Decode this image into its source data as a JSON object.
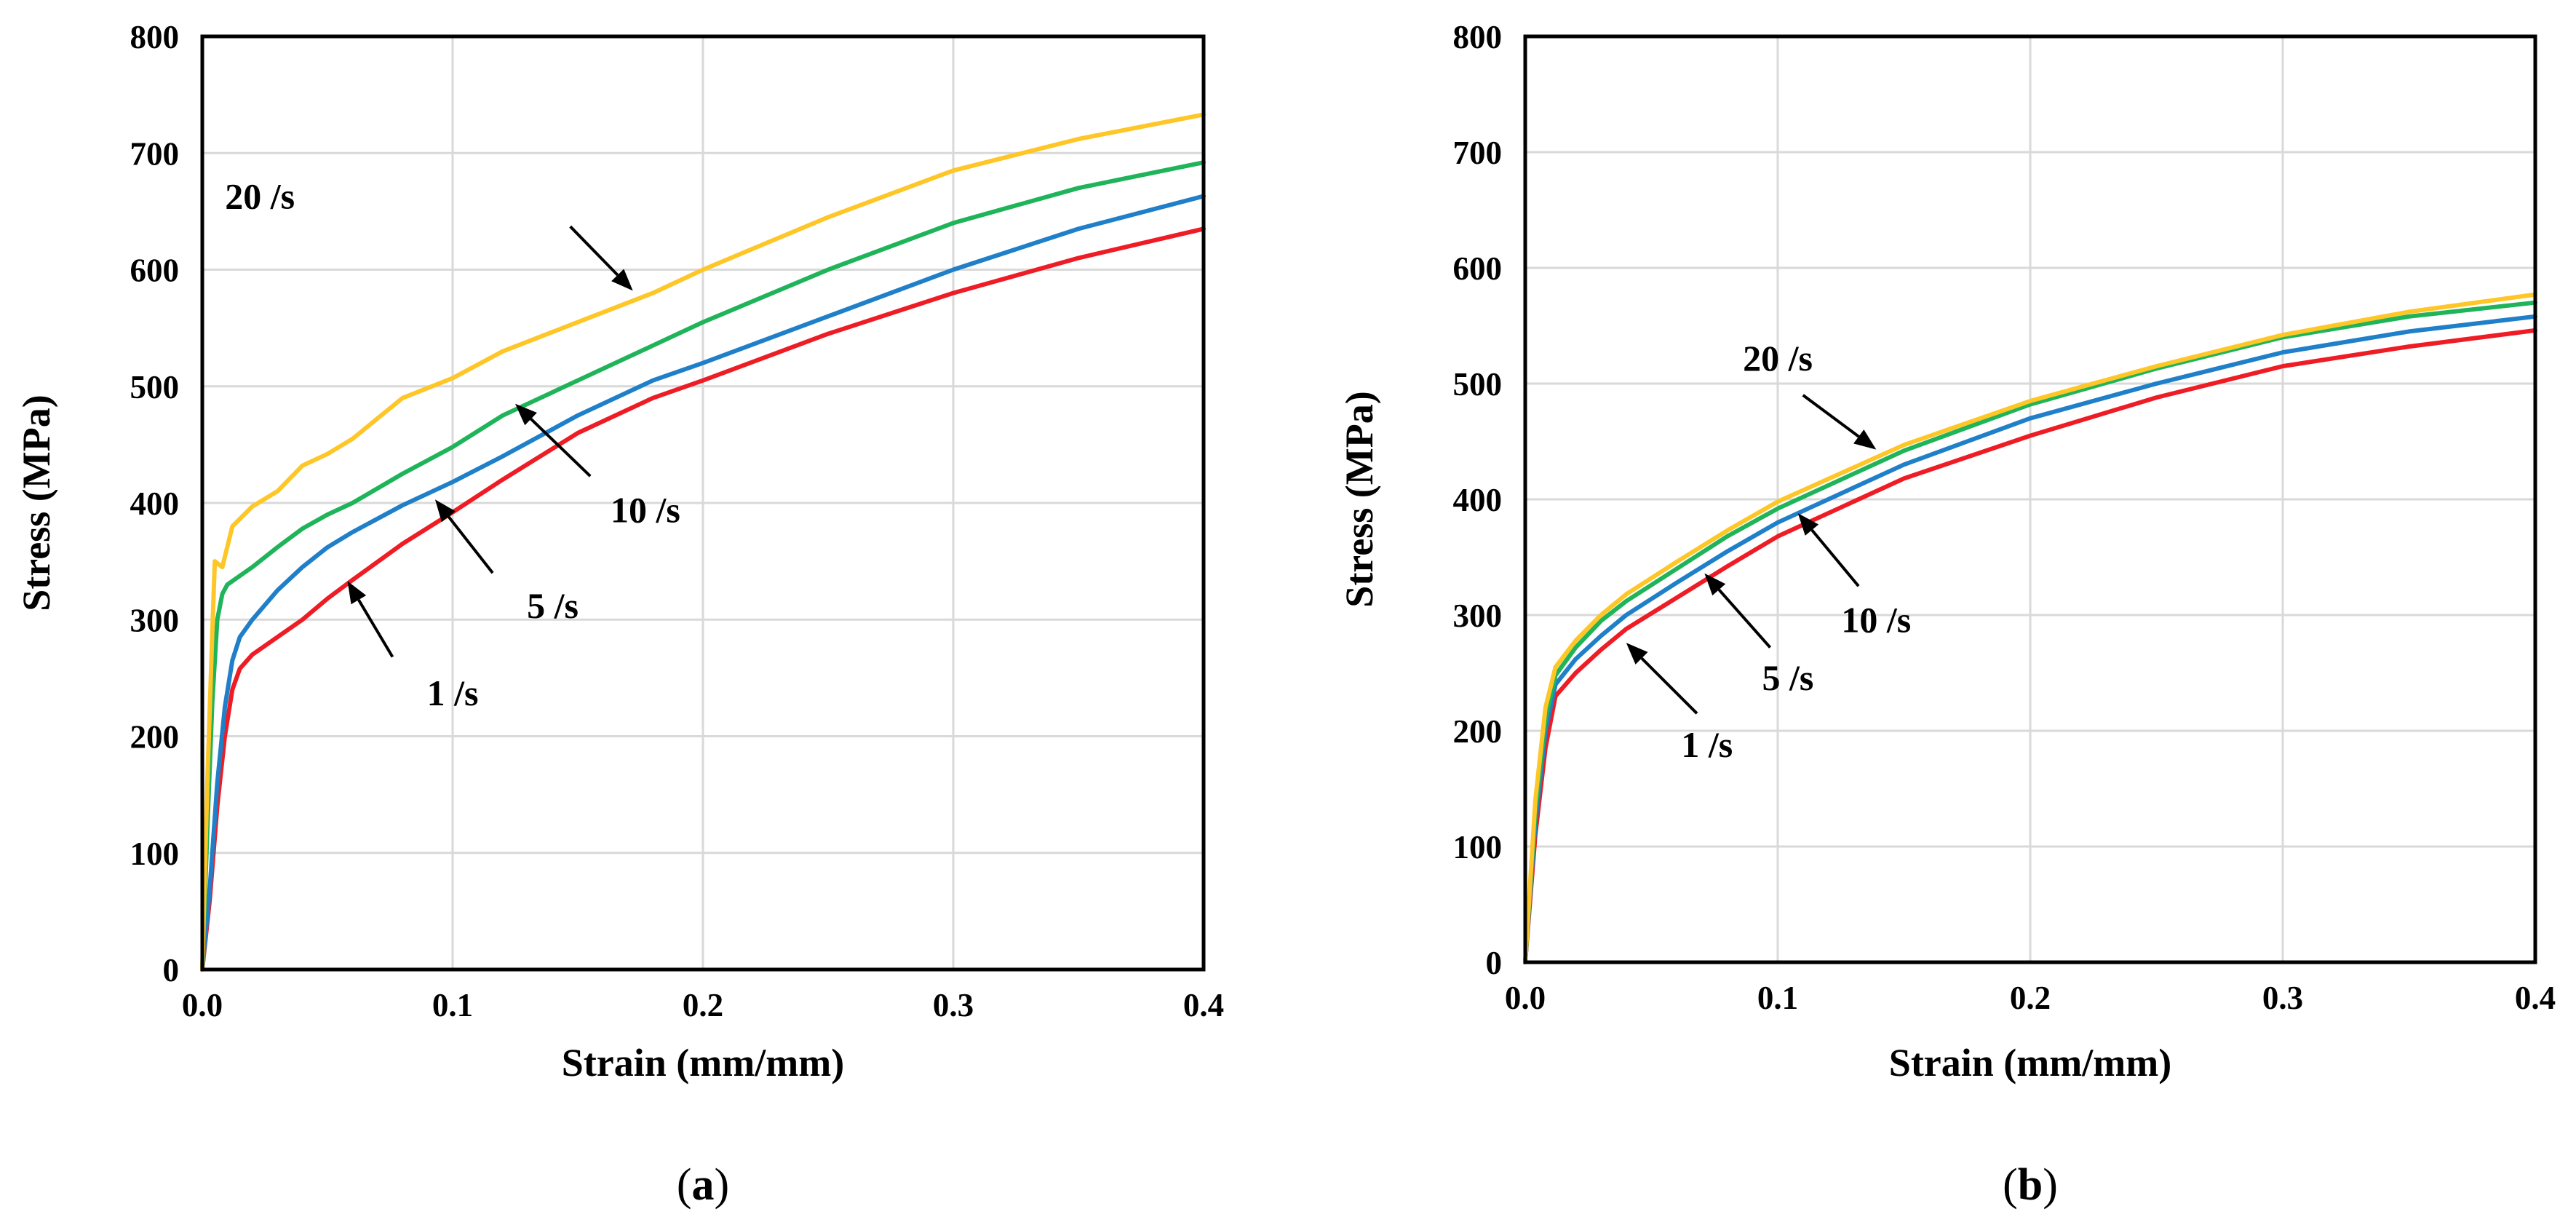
{
  "chart_data": [
    {
      "panel": "a",
      "type": "line",
      "panel_label": "(a)",
      "panel_label_prefix": "(",
      "panel_label_letter": "a",
      "panel_label_suffix": ")",
      "xlabel": "Strain (mm/mm)",
      "ylabel": "Stress (MPa)",
      "xlim": [
        0,
        0.4
      ],
      "ylim": [
        0,
        800
      ],
      "xticks": [
        0,
        0.1,
        0.2,
        0.3,
        0.4
      ],
      "xtick_labels": [
        "0.0",
        "0.1",
        "0.2",
        "0.3",
        "0.4"
      ],
      "yticks": [
        0,
        100,
        200,
        300,
        400,
        500,
        600,
        700,
        800
      ],
      "ytick_labels": [
        "0",
        "100",
        "200",
        "300",
        "400",
        "500",
        "600",
        "700",
        "800"
      ],
      "grid": true,
      "series": [
        {
          "name": "1 /s",
          "color": "#ee1c24",
          "points": [
            [
              0,
              0
            ],
            [
              0.003,
              60
            ],
            [
              0.006,
              140
            ],
            [
              0.009,
              200
            ],
            [
              0.012,
              240
            ],
            [
              0.015,
              258
            ],
            [
              0.02,
              270
            ],
            [
              0.03,
              285
            ],
            [
              0.04,
              300
            ],
            [
              0.05,
              318
            ],
            [
              0.06,
              334
            ],
            [
              0.08,
              365
            ],
            [
              0.1,
              392
            ],
            [
              0.12,
              420
            ],
            [
              0.15,
              460
            ],
            [
              0.18,
              490
            ],
            [
              0.2,
              505
            ],
            [
              0.25,
              545
            ],
            [
              0.3,
              580
            ],
            [
              0.35,
              610
            ],
            [
              0.4,
              635
            ]
          ],
          "label": {
            "text": "1 /s",
            "text_pos": [
              0.1,
              237
            ],
            "arrow_from": [
              0.076,
              268
            ],
            "arrow_to": [
              0.058,
              333
            ]
          }
        },
        {
          "name": "5 /s",
          "color": "#1f7fc8",
          "points": [
            [
              0,
              0
            ],
            [
              0.003,
              70
            ],
            [
              0.006,
              160
            ],
            [
              0.009,
              225
            ],
            [
              0.012,
              265
            ],
            [
              0.015,
              285
            ],
            [
              0.02,
              300
            ],
            [
              0.03,
              325
            ],
            [
              0.04,
              345
            ],
            [
              0.05,
              362
            ],
            [
              0.06,
              375
            ],
            [
              0.08,
              398
            ],
            [
              0.1,
              418
            ],
            [
              0.12,
              440
            ],
            [
              0.15,
              475
            ],
            [
              0.18,
              505
            ],
            [
              0.2,
              520
            ],
            [
              0.25,
              560
            ],
            [
              0.3,
              600
            ],
            [
              0.35,
              635
            ],
            [
              0.4,
              663
            ]
          ],
          "label": {
            "text": "5 /s",
            "text_pos": [
              0.14,
              312
            ],
            "arrow_from": [
              0.116,
              340
            ],
            "arrow_to": [
              0.093,
              403
            ]
          }
        },
        {
          "name": "10 /s",
          "color": "#1fb45a",
          "points": [
            [
              0,
              0
            ],
            [
              0.002,
              120
            ],
            [
              0.004,
              230
            ],
            [
              0.006,
              300
            ],
            [
              0.008,
              322
            ],
            [
              0.01,
              330
            ],
            [
              0.02,
              345
            ],
            [
              0.03,
              362
            ],
            [
              0.04,
              378
            ],
            [
              0.05,
              390
            ],
            [
              0.06,
              400
            ],
            [
              0.08,
              425
            ],
            [
              0.1,
              448
            ],
            [
              0.12,
              475
            ],
            [
              0.15,
              505
            ],
            [
              0.18,
              535
            ],
            [
              0.2,
              555
            ],
            [
              0.25,
              600
            ],
            [
              0.3,
              640
            ],
            [
              0.35,
              670
            ],
            [
              0.4,
              692
            ]
          ],
          "label": {
            "text": "10 /s",
            "text_pos": [
              0.177,
              394
            ],
            "arrow_from": [
              0.155,
              423
            ],
            "arrow_to": [
              0.125,
              485
            ]
          }
        },
        {
          "name": "20 /s",
          "color": "#fec627",
          "points": [
            [
              0,
              0
            ],
            [
              0.002,
              160
            ],
            [
              0.004,
              290
            ],
            [
              0.005,
              350
            ],
            [
              0.008,
              345
            ],
            [
              0.012,
              380
            ],
            [
              0.02,
              397
            ],
            [
              0.03,
              410
            ],
            [
              0.04,
              432
            ],
            [
              0.05,
              442
            ],
            [
              0.06,
              455
            ],
            [
              0.08,
              490
            ],
            [
              0.1,
              507
            ],
            [
              0.12,
              530
            ],
            [
              0.15,
              555
            ],
            [
              0.18,
              580
            ],
            [
              0.2,
              600
            ],
            [
              0.25,
              645
            ],
            [
              0.3,
              685
            ],
            [
              0.35,
              712
            ],
            [
              0.4,
              733
            ]
          ],
          "label": {
            "text": "20 /s",
            "text_pos": [
              0.023,
              663
            ],
            "arrow_from": [
              0.147,
              637
            ],
            "arrow_to": [
              0.172,
              582
            ]
          }
        }
      ]
    },
    {
      "panel": "b",
      "type": "line",
      "panel_label": "(b)",
      "panel_label_prefix": "(",
      "panel_label_letter": "b",
      "panel_label_suffix": ")",
      "xlabel": "Strain (mm/mm)",
      "ylabel": "Stress (MPa)",
      "xlim": [
        0,
        0.4
      ],
      "ylim": [
        0,
        800
      ],
      "xticks": [
        0,
        0.1,
        0.2,
        0.3,
        0.4
      ],
      "xtick_labels": [
        "0.0",
        "0.1",
        "0.2",
        "0.3",
        "0.4"
      ],
      "yticks": [
        0,
        100,
        200,
        300,
        400,
        500,
        600,
        700,
        800
      ],
      "ytick_labels": [
        "0",
        "100",
        "200",
        "300",
        "400",
        "500",
        "600",
        "700",
        "800"
      ],
      "grid": true,
      "series": [
        {
          "name": "1 /s",
          "color": "#ee1c24",
          "points": [
            [
              0,
              0
            ],
            [
              0.004,
              110
            ],
            [
              0.008,
              185
            ],
            [
              0.012,
              230
            ],
            [
              0.02,
              250
            ],
            [
              0.03,
              270
            ],
            [
              0.04,
              288
            ],
            [
              0.06,
              315
            ],
            [
              0.08,
              342
            ],
            [
              0.1,
              368
            ],
            [
              0.15,
              418
            ],
            [
              0.2,
              455
            ],
            [
              0.25,
              488
            ],
            [
              0.3,
              515
            ],
            [
              0.35,
              532
            ],
            [
              0.4,
              546
            ]
          ],
          "label": {
            "text": "1 /s",
            "text_pos": [
              0.072,
              188
            ],
            "arrow_from": [
              0.068,
              215
            ],
            "arrow_to": [
              0.04,
              276
            ]
          }
        },
        {
          "name": "5 /s",
          "color": "#1f7fc8",
          "points": [
            [
              0,
              0
            ],
            [
              0.004,
              120
            ],
            [
              0.008,
              200
            ],
            [
              0.012,
              240
            ],
            [
              0.02,
              262
            ],
            [
              0.03,
              282
            ],
            [
              0.04,
              300
            ],
            [
              0.06,
              328
            ],
            [
              0.08,
              355
            ],
            [
              0.1,
              380
            ],
            [
              0.15,
              430
            ],
            [
              0.2,
              470
            ],
            [
              0.25,
              500
            ],
            [
              0.3,
              527
            ],
            [
              0.35,
              545
            ],
            [
              0.4,
              558
            ]
          ],
          "label": {
            "text": "5 /s",
            "text_pos": [
              0.104,
              246
            ],
            "arrow_from": [
              0.097,
              272
            ],
            "arrow_to": [
              0.071,
              336
            ]
          }
        },
        {
          "name": "10 /s",
          "color": "#1fb45a",
          "points": [
            [
              0,
              0
            ],
            [
              0.004,
              130
            ],
            [
              0.008,
              210
            ],
            [
              0.012,
              248
            ],
            [
              0.02,
              272
            ],
            [
              0.03,
              295
            ],
            [
              0.04,
              312
            ],
            [
              0.06,
              340
            ],
            [
              0.08,
              368
            ],
            [
              0.1,
              392
            ],
            [
              0.15,
              442
            ],
            [
              0.2,
              482
            ],
            [
              0.25,
              513
            ],
            [
              0.3,
              540
            ],
            [
              0.35,
              558
            ],
            [
              0.4,
              570
            ]
          ],
          "label": {
            "text": "10 /s",
            "text_pos": [
              0.139,
              296
            ],
            "arrow_from": [
              0.132,
              325
            ],
            "arrow_to": [
              0.108,
              388
            ]
          }
        },
        {
          "name": "20 /s",
          "color": "#fec627",
          "points": [
            [
              0,
              0
            ],
            [
              0.004,
              140
            ],
            [
              0.008,
              220
            ],
            [
              0.012,
              255
            ],
            [
              0.02,
              278
            ],
            [
              0.03,
              300
            ],
            [
              0.04,
              318
            ],
            [
              0.06,
              346
            ],
            [
              0.08,
              373
            ],
            [
              0.1,
              398
            ],
            [
              0.15,
              447
            ],
            [
              0.2,
              485
            ],
            [
              0.25,
              515
            ],
            [
              0.3,
              542
            ],
            [
              0.35,
              562
            ],
            [
              0.4,
              577
            ]
          ],
          "label": {
            "text": "20 /s",
            "text_pos": [
              0.1,
              522
            ],
            "arrow_from": [
              0.11,
              490
            ],
            "arrow_to": [
              0.139,
              443
            ]
          }
        }
      ]
    }
  ]
}
